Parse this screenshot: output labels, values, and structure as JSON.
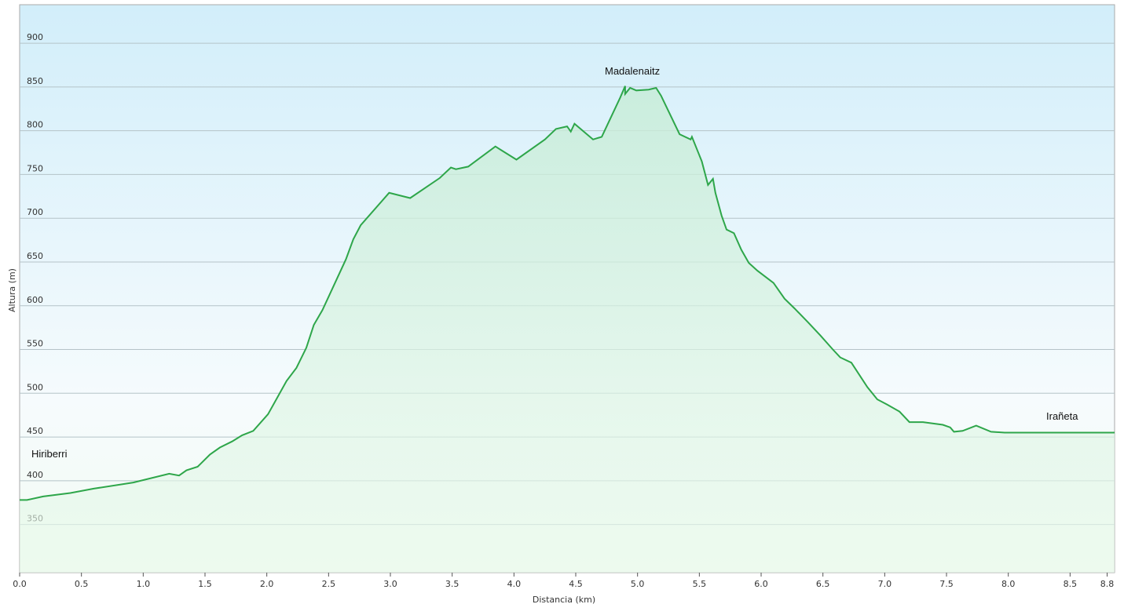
{
  "chart_data": {
    "type": "area",
    "x_label": "Distancia  (km)",
    "y_label": "Altura (m)",
    "annotations": [
      "Hiriberri",
      "Madalenaitz",
      "Irañeta"
    ],
    "x": [
      0,
      0.06,
      0.19,
      0.41,
      0.6,
      0.92,
      1.21,
      1.29,
      1.35,
      1.44,
      1.54,
      1.62,
      1.72,
      1.8,
      1.89,
      2.01,
      2.16,
      2.24,
      2.32,
      2.38,
      2.45,
      2.64,
      2.7,
      2.76,
      2.99,
      3.16,
      3.4,
      3.49,
      3.53,
      3.63,
      3.85,
      4.02,
      4.25,
      4.34,
      4.43,
      4.46,
      4.49,
      4.64,
      4.71,
      4.86,
      4.9,
      4.9,
      4.94,
      4.99,
      5.09,
      5.15,
      5.19,
      5.34,
      5.43,
      5.44,
      5.52,
      5.57,
      5.61,
      5.63,
      5.68,
      5.72,
      5.78,
      5.84,
      5.9,
      5.97,
      6.1,
      6.19,
      6.27,
      6.38,
      6.48,
      6.58,
      6.64,
      6.73,
      6.86,
      6.94,
      7.02,
      7.12,
      7.2,
      7.31,
      7.47,
      7.53,
      7.56,
      7.63,
      7.74,
      7.86,
      7.97,
      8.86
    ],
    "y": [
      378,
      378,
      382,
      386,
      391,
      398,
      408,
      406,
      412,
      416,
      430,
      438,
      445,
      452,
      457,
      476,
      514,
      529,
      552,
      578,
      595,
      653,
      676,
      692,
      729,
      723,
      746,
      758,
      756,
      759,
      782,
      767,
      790,
      802,
      805,
      799,
      808,
      790,
      793,
      838,
      851,
      842,
      849,
      846,
      847,
      849,
      840,
      796,
      790,
      793,
      765,
      738,
      745,
      729,
      703,
      687,
      683,
      664,
      649,
      640,
      626,
      608,
      597,
      581,
      566,
      550,
      541,
      535,
      507,
      493,
      487,
      479,
      467,
      467,
      464,
      461,
      456,
      457,
      463,
      456,
      455,
      455
    ],
    "color": "#2ea64a",
    "xlim": [
      0,
      8.86
    ],
    "ylim": [
      295,
      944
    ],
    "xticks": [
      {
        "value": 0,
        "label": "0.0"
      },
      0.5,
      {
        "value": 1,
        "label": "1.0"
      },
      1.5,
      {
        "value": 2,
        "label": "2.0"
      },
      2.5,
      {
        "value": 3,
        "label": "3.0"
      },
      3.5,
      {
        "value": 4,
        "label": "4.0"
      },
      4.5,
      {
        "value": 5,
        "label": "5.0"
      },
      5.5,
      {
        "value": 6,
        "label": "6.0"
      },
      6.5,
      {
        "value": 7,
        "label": "7.0"
      },
      7.5,
      {
        "value": 8,
        "label": "8.0"
      },
      8.5,
      8.8
    ],
    "yticks": [
      350,
      400,
      450,
      500,
      550,
      600,
      650,
      700,
      750,
      800,
      850,
      900
    ],
    "grid": true
  }
}
